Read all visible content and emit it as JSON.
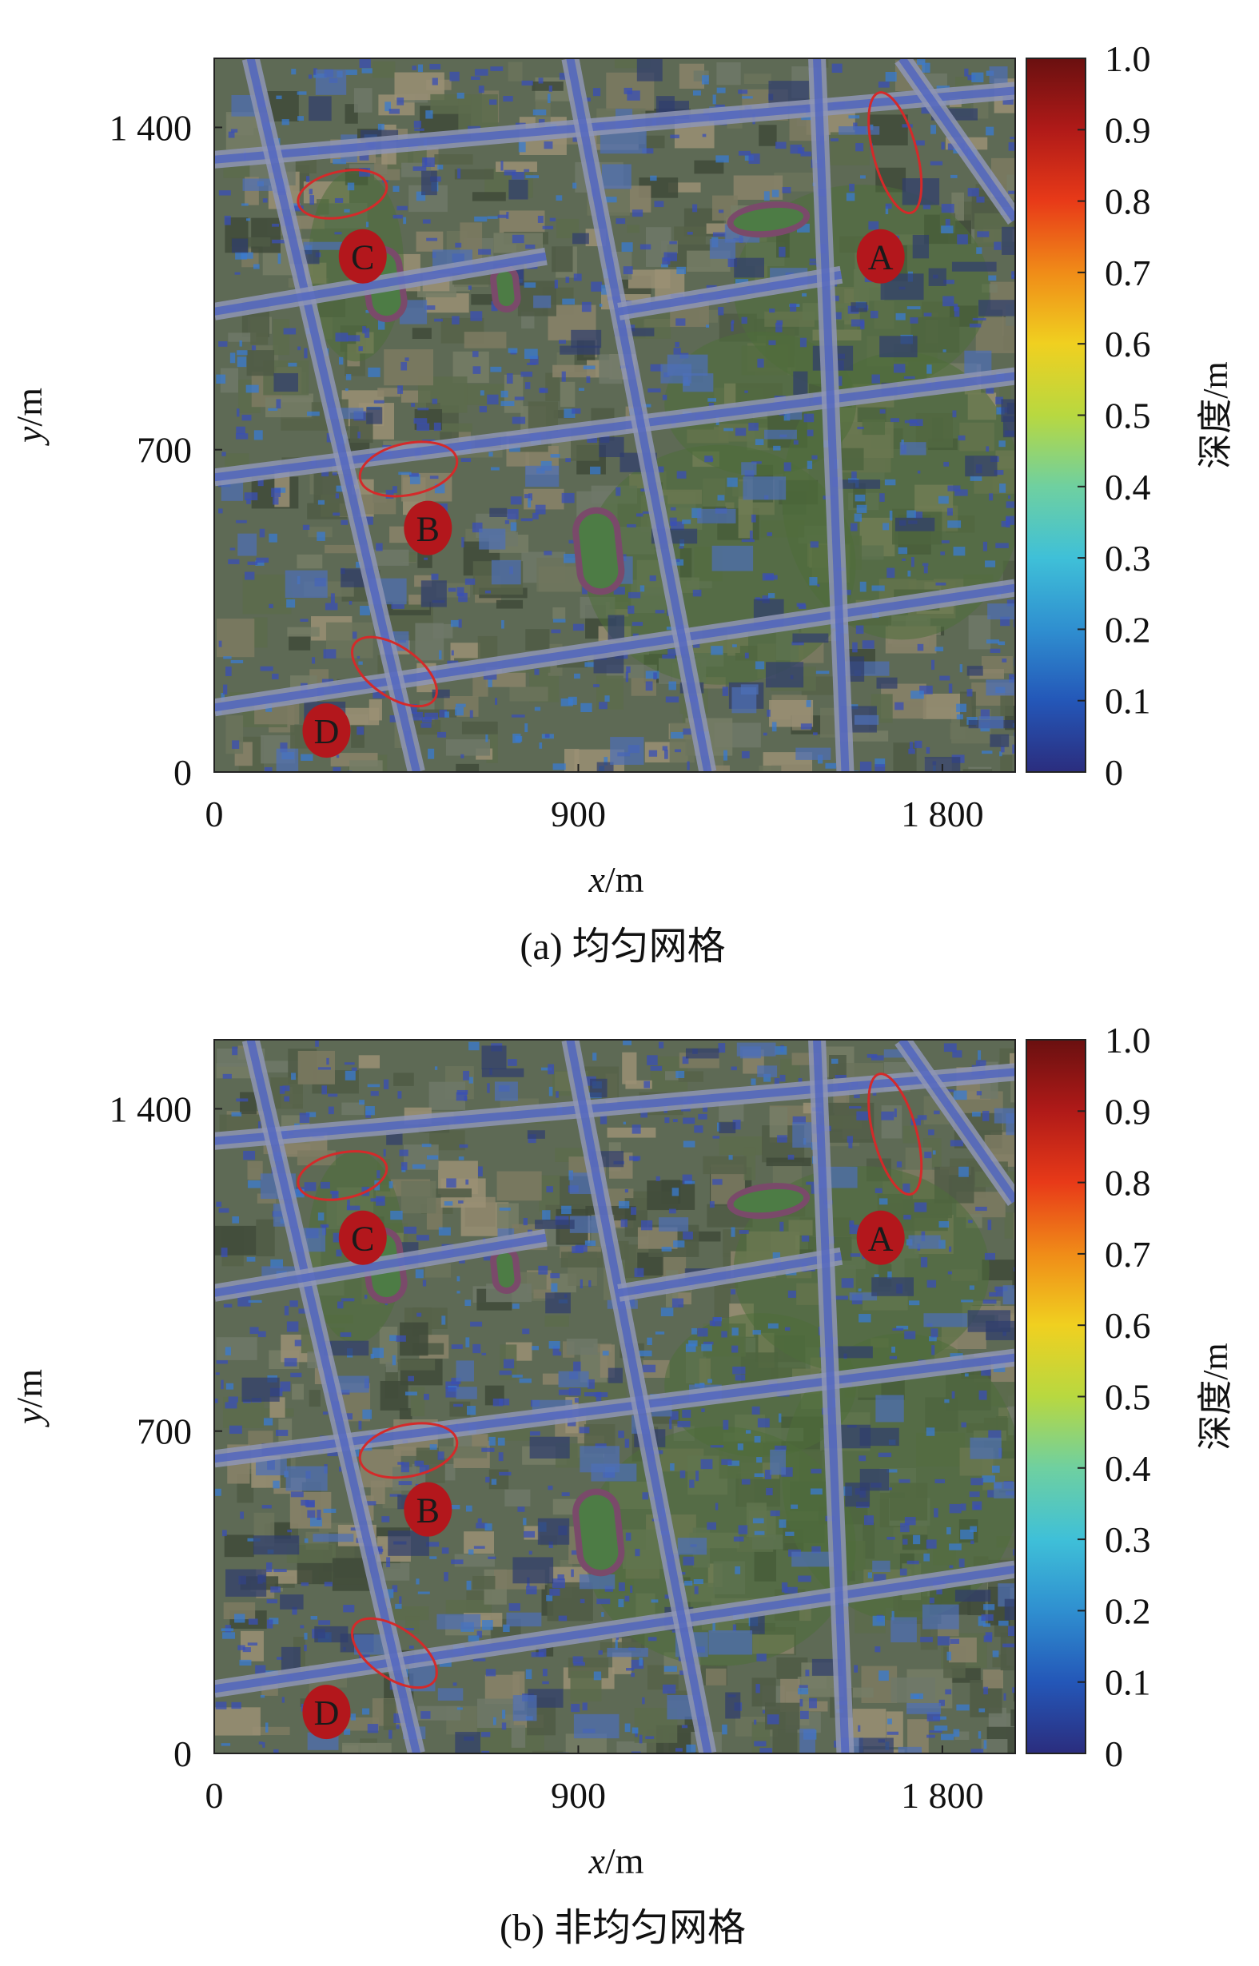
{
  "chart_data": [
    {
      "type": "heatmap",
      "caption": "(a) 均匀网格",
      "xlabel": "x/m",
      "ylabel": "y/m",
      "x_ticks": [
        0,
        900,
        1800
      ],
      "x_tick_labels": [
        "0",
        "900",
        "1 800"
      ],
      "y_ticks": [
        0,
        700,
        1400
      ],
      "y_tick_labels": [
        "0",
        "700",
        "1 400"
      ],
      "xlim": [
        0,
        1980
      ],
      "ylim": [
        0,
        1550
      ],
      "colorbar": {
        "label": "深度/m",
        "min": 0,
        "max": 1.0,
        "ticks": [
          0,
          0.1,
          0.2,
          0.3,
          0.4,
          0.5,
          0.6,
          0.7,
          0.8,
          0.9,
          1.0
        ],
        "tick_labels": [
          "0",
          "0.1",
          "0.2",
          "0.3",
          "0.4",
          "0.5",
          "0.6",
          "0.7",
          "0.8",
          "0.9",
          "1.0"
        ],
        "colormap": [
          "#2b2d7e",
          "#2457b8",
          "#2f8fd0",
          "#3fc0d8",
          "#6fd0a0",
          "#b8d840",
          "#f0d020",
          "#f08c18",
          "#e83a18",
          "#b01a18",
          "#6a1010"
        ]
      },
      "annotations": [
        {
          "label": "A",
          "x": 1840,
          "y": 1120
        },
        {
          "label": "B",
          "x": 590,
          "y": 530
        },
        {
          "label": "C",
          "x": 410,
          "y": 1120
        },
        {
          "label": "D",
          "x": 310,
          "y": 90
        }
      ],
      "highlight_regions": [
        {
          "cx": 1700,
          "cy": 1345,
          "rx": 60,
          "ry": 150
        },
        {
          "cx": 485,
          "cy": 658,
          "rx": 137,
          "ry": 62
        },
        {
          "cx": 320,
          "cy": 1255,
          "rx": 125,
          "ry": 55
        },
        {
          "cx": 450,
          "cy": 218,
          "rx": 135,
          "ry": 60
        }
      ]
    },
    {
      "type": "heatmap",
      "caption": "(b) 非均匀网格",
      "xlabel": "x/m",
      "ylabel": "y/m",
      "x_ticks": [
        0,
        900,
        1800
      ],
      "x_tick_labels": [
        "0",
        "900",
        "1 800"
      ],
      "y_ticks": [
        0,
        700,
        1400
      ],
      "y_tick_labels": [
        "0",
        "700",
        "1 400"
      ],
      "xlim": [
        0,
        1980
      ],
      "ylim": [
        0,
        1550
      ],
      "colorbar": {
        "label": "深度/m",
        "min": 0,
        "max": 1.0,
        "ticks": [
          0,
          0.1,
          0.2,
          0.3,
          0.4,
          0.5,
          0.6,
          0.7,
          0.8,
          0.9,
          1.0
        ],
        "tick_labels": [
          "0",
          "0.1",
          "0.2",
          "0.3",
          "0.4",
          "0.5",
          "0.6",
          "0.7",
          "0.8",
          "0.9",
          "1.0"
        ],
        "colormap": [
          "#2b2d7e",
          "#2457b8",
          "#2f8fd0",
          "#3fc0d8",
          "#6fd0a0",
          "#b8d840",
          "#f0d020",
          "#f08c18",
          "#e83a18",
          "#b01a18",
          "#6a1010"
        ]
      },
      "annotations": [
        {
          "label": "A",
          "x": 1840,
          "y": 1120
        },
        {
          "label": "B",
          "x": 590,
          "y": 530
        },
        {
          "label": "C",
          "x": 410,
          "y": 1120
        },
        {
          "label": "D",
          "x": 310,
          "y": 90
        }
      ],
      "highlight_regions": [
        {
          "cx": 1700,
          "cy": 1345,
          "rx": 60,
          "ry": 150
        },
        {
          "cx": 485,
          "cy": 658,
          "rx": 137,
          "ry": 62
        },
        {
          "cx": 320,
          "cy": 1255,
          "rx": 125,
          "ry": 55
        },
        {
          "cx": 450,
          "cy": 218,
          "rx": 135,
          "ry": 60
        }
      ]
    }
  ]
}
